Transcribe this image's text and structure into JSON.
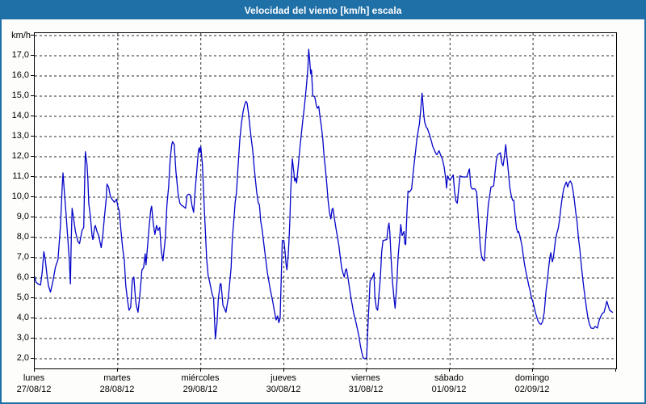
{
  "window": {
    "title": "Velocidad del viento [km/h] escala"
  },
  "colors": {
    "titlebar_bg": "#2070a8",
    "frame": "#2070a8",
    "line": "#0404c8",
    "grid": "#282828",
    "plot_bg": "#ffffff",
    "text": "#000000"
  },
  "y_axis": {
    "unit_label": "km/h",
    "tick_labels": [
      "17,0",
      "16,0",
      "15,0",
      "14,0",
      "13,0",
      "12,0",
      "11,0",
      "10,0",
      "9,0",
      "8,0",
      "7,0",
      "6,0",
      "5,0",
      "4,0",
      "3,0",
      "2,0"
    ],
    "tick_values": [
      17,
      16,
      15,
      14,
      13,
      12,
      11,
      10,
      9,
      8,
      7,
      6,
      5,
      4,
      3,
      2
    ]
  },
  "x_axis": {
    "days": [
      {
        "name": "lunes",
        "date": "27/08/12"
      },
      {
        "name": "martes",
        "date": "28/08/12"
      },
      {
        "name": "miércoles",
        "date": "29/08/12"
      },
      {
        "name": "jueves",
        "date": "30/08/12"
      },
      {
        "name": "viernes",
        "date": "31/08/12"
      },
      {
        "name": "sábado",
        "date": "01/09/12"
      },
      {
        "name": "domingo",
        "date": "02/09/12"
      }
    ]
  },
  "chart_data": {
    "type": "line",
    "title": "Velocidad del viento [km/h] escala",
    "series_name": "Velocidad del viento",
    "unit": "km/h",
    "x_unit": "days since 27/08/12 00:00",
    "xlim": [
      0,
      7
    ],
    "ylim": [
      1.5,
      18.2
    ],
    "grid": "dashed",
    "legend": "none",
    "points": [
      [
        0.0,
        6.05
      ],
      [
        0.015,
        5.8
      ],
      [
        0.04,
        5.7
      ],
      [
        0.07,
        5.65
      ],
      [
        0.09,
        6.3
      ],
      [
        0.11,
        7.3
      ],
      [
        0.127,
        6.9
      ],
      [
        0.146,
        6.2
      ],
      [
        0.166,
        5.6
      ],
      [
        0.19,
        5.3
      ],
      [
        0.22,
        5.85
      ],
      [
        0.25,
        6.55
      ],
      [
        0.28,
        6.9
      ],
      [
        0.31,
        8.6
      ],
      [
        0.33,
        10.4
      ],
      [
        0.34,
        11.2
      ],
      [
        0.36,
        10.1
      ],
      [
        0.38,
        9.0
      ],
      [
        0.396,
        8.1
      ],
      [
        0.416,
        6.9
      ],
      [
        0.43,
        5.7
      ],
      [
        0.44,
        8.0
      ],
      [
        0.45,
        9.45
      ],
      [
        0.47,
        8.9
      ],
      [
        0.49,
        8.3
      ],
      [
        0.52,
        7.8
      ],
      [
        0.54,
        7.7
      ],
      [
        0.57,
        8.35
      ],
      [
        0.59,
        8.5
      ],
      [
        0.6,
        10.5
      ],
      [
        0.61,
        12.25
      ],
      [
        0.63,
        11.6
      ],
      [
        0.64,
        10.9
      ],
      [
        0.65,
        9.7
      ],
      [
        0.67,
        9.05
      ],
      [
        0.69,
        8.1
      ],
      [
        0.7,
        7.9
      ],
      [
        0.72,
        8.5
      ],
      [
        0.73,
        8.6
      ],
      [
        0.75,
        8.3
      ],
      [
        0.77,
        8.1
      ],
      [
        0.8,
        7.5
      ],
      [
        0.82,
        8.1
      ],
      [
        0.84,
        9.05
      ],
      [
        0.86,
        9.9
      ],
      [
        0.87,
        10.65
      ],
      [
        0.89,
        10.5
      ],
      [
        0.91,
        10.05
      ],
      [
        0.93,
        9.9
      ],
      [
        0.96,
        9.75
      ],
      [
        0.985,
        9.9
      ],
      [
        1.0,
        9.55
      ],
      [
        1.019,
        9.3
      ],
      [
        1.039,
        8.3
      ],
      [
        1.058,
        7.5
      ],
      [
        1.078,
        6.9
      ],
      [
        1.097,
        5.6
      ],
      [
        1.117,
        4.9
      ],
      [
        1.136,
        4.4
      ],
      [
        1.155,
        4.55
      ],
      [
        1.175,
        5.9
      ],
      [
        1.194,
        6.05
      ],
      [
        1.214,
        4.9
      ],
      [
        1.223,
        4.65
      ],
      [
        1.243,
        4.3
      ],
      [
        1.262,
        5.0
      ],
      [
        1.272,
        5.45
      ],
      [
        1.291,
        6.4
      ],
      [
        1.311,
        6.5
      ],
      [
        1.33,
        7.2
      ],
      [
        1.34,
        6.65
      ],
      [
        1.359,
        7.6
      ],
      [
        1.379,
        8.6
      ],
      [
        1.398,
        9.4
      ],
      [
        1.408,
        9.55
      ],
      [
        1.427,
        8.7
      ],
      [
        1.447,
        8.15
      ],
      [
        1.466,
        8.6
      ],
      [
        1.485,
        8.35
      ],
      [
        1.505,
        8.5
      ],
      [
        1.524,
        7.3
      ],
      [
        1.544,
        6.85
      ],
      [
        1.573,
        8.0
      ],
      [
        1.592,
        9.6
      ],
      [
        1.612,
        10.5
      ],
      [
        1.631,
        11.9
      ],
      [
        1.65,
        12.6
      ],
      [
        1.66,
        12.75
      ],
      [
        1.68,
        12.6
      ],
      [
        1.699,
        11.3
      ],
      [
        1.709,
        10.9
      ],
      [
        1.728,
        10.1
      ],
      [
        1.748,
        9.7
      ],
      [
        1.767,
        9.6
      ],
      [
        1.786,
        9.55
      ],
      [
        1.816,
        9.45
      ],
      [
        1.835,
        10.1
      ],
      [
        1.854,
        10.15
      ],
      [
        1.874,
        10.1
      ],
      [
        1.893,
        9.6
      ],
      [
        1.913,
        9.25
      ],
      [
        1.932,
        10.35
      ],
      [
        1.951,
        11.3
      ],
      [
        1.971,
        12.3
      ],
      [
        1.981,
        12.45
      ],
      [
        1.99,
        12.2
      ],
      [
        2.0,
        12.5
      ],
      [
        2.019,
        11.6
      ],
      [
        2.039,
        9.7
      ],
      [
        2.058,
        8.0
      ],
      [
        2.071,
        6.9
      ],
      [
        2.088,
        6.1
      ],
      [
        2.104,
        5.85
      ],
      [
        2.136,
        5.2
      ],
      [
        2.153,
        4.99
      ],
      [
        2.175,
        3.0
      ],
      [
        2.195,
        3.8
      ],
      [
        2.211,
        4.98
      ],
      [
        2.234,
        5.72
      ],
      [
        2.244,
        5.7
      ],
      [
        2.266,
        4.65
      ],
      [
        2.283,
        4.5
      ],
      [
        2.302,
        4.3
      ],
      [
        2.331,
        5.05
      ],
      [
        2.364,
        6.5
      ],
      [
        2.38,
        8.0
      ],
      [
        2.4,
        9.0
      ],
      [
        2.412,
        9.7
      ],
      [
        2.429,
        10.2
      ],
      [
        2.448,
        11.5
      ],
      [
        2.468,
        12.8
      ],
      [
        2.487,
        13.6
      ],
      [
        2.507,
        14.2
      ],
      [
        2.526,
        14.55
      ],
      [
        2.543,
        14.75
      ],
      [
        2.558,
        14.65
      ],
      [
        2.575,
        14.1
      ],
      [
        2.592,
        13.45
      ],
      [
        2.607,
        12.9
      ],
      [
        2.624,
        12.35
      ],
      [
        2.64,
        11.6
      ],
      [
        2.656,
        10.9
      ],
      [
        2.673,
        10.25
      ],
      [
        2.692,
        9.7
      ],
      [
        2.705,
        9.65
      ],
      [
        2.721,
        8.8
      ],
      [
        2.738,
        8.4
      ],
      [
        2.77,
        7.3
      ],
      [
        2.802,
        6.25
      ],
      [
        2.835,
        5.45
      ],
      [
        2.867,
        4.8
      ],
      [
        2.884,
        4.4
      ],
      [
        2.906,
        3.92
      ],
      [
        2.923,
        4.12
      ],
      [
        2.939,
        3.79
      ],
      [
        2.955,
        4.0
      ],
      [
        2.968,
        6.0
      ],
      [
        2.981,
        7.85
      ],
      [
        3.0,
        7.85
      ],
      [
        3.014,
        7.3
      ],
      [
        3.026,
        6.7
      ],
      [
        3.036,
        6.4
      ],
      [
        3.052,
        7.1
      ],
      [
        3.062,
        7.85
      ],
      [
        3.072,
        8.9
      ],
      [
        3.082,
        10.3
      ],
      [
        3.101,
        11.9
      ],
      [
        3.121,
        11.2
      ],
      [
        3.13,
        10.8
      ],
      [
        3.14,
        10.95
      ],
      [
        3.153,
        10.7
      ],
      [
        3.176,
        11.7
      ],
      [
        3.192,
        12.4
      ],
      [
        3.208,
        13.05
      ],
      [
        3.225,
        13.7
      ],
      [
        3.24,
        14.25
      ],
      [
        3.257,
        14.9
      ],
      [
        3.273,
        15.6
      ],
      [
        3.289,
        16.4
      ],
      [
        3.299,
        17.32
      ],
      [
        3.312,
        16.7
      ],
      [
        3.322,
        16.1
      ],
      [
        3.332,
        16.3
      ],
      [
        3.347,
        15.05
      ],
      [
        3.354,
        15.0
      ],
      [
        3.371,
        14.98
      ],
      [
        3.393,
        14.5
      ],
      [
        3.403,
        14.4
      ],
      [
        3.419,
        14.5
      ],
      [
        3.435,
        13.98
      ],
      [
        3.451,
        13.5
      ],
      [
        3.468,
        12.9
      ],
      [
        3.483,
        12.05
      ],
      [
        3.5,
        11.4
      ],
      [
        3.517,
        10.65
      ],
      [
        3.532,
        9.85
      ],
      [
        3.549,
        9.25
      ],
      [
        3.565,
        8.92
      ],
      [
        3.581,
        9.4
      ],
      [
        3.59,
        9.45
      ],
      [
        3.614,
        8.8
      ],
      [
        3.629,
        8.4
      ],
      [
        3.646,
        8.0
      ],
      [
        3.662,
        7.6
      ],
      [
        3.678,
        7.05
      ],
      [
        3.695,
        6.5
      ],
      [
        3.711,
        6.25
      ],
      [
        3.727,
        6.05
      ],
      [
        3.743,
        6.4
      ],
      [
        3.753,
        6.45
      ],
      [
        3.77,
        6.05
      ],
      [
        3.792,
        5.45
      ],
      [
        3.808,
        4.99
      ],
      [
        3.824,
        4.65
      ],
      [
        3.84,
        4.25
      ],
      [
        3.857,
        3.99
      ],
      [
        3.873,
        3.7
      ],
      [
        3.889,
        3.4
      ],
      [
        3.906,
        3.05
      ],
      [
        3.921,
        2.65
      ],
      [
        3.938,
        2.3
      ],
      [
        3.954,
        2.05
      ],
      [
        3.97,
        2.0
      ],
      [
        3.996,
        2.05
      ],
      [
        4.006,
        3.0
      ],
      [
        4.016,
        4.0
      ],
      [
        4.038,
        5.85
      ],
      [
        4.064,
        6.0
      ],
      [
        4.084,
        6.25
      ],
      [
        4.096,
        5.05
      ],
      [
        4.113,
        4.5
      ],
      [
        4.129,
        4.4
      ],
      [
        4.161,
        6.0
      ],
      [
        4.178,
        7.3
      ],
      [
        4.193,
        7.85
      ],
      [
        4.239,
        7.9
      ],
      [
        4.252,
        8.4
      ],
      [
        4.265,
        8.72
      ],
      [
        4.275,
        8.3
      ],
      [
        4.291,
        6.92
      ],
      [
        4.307,
        5.85
      ],
      [
        4.324,
        5.05
      ],
      [
        4.339,
        4.5
      ],
      [
        4.359,
        5.7
      ],
      [
        4.375,
        7.05
      ],
      [
        4.392,
        7.85
      ],
      [
        4.407,
        8.65
      ],
      [
        4.424,
        8.1
      ],
      [
        4.446,
        8.3
      ],
      [
        4.456,
        7.7
      ],
      [
        4.466,
        7.65
      ],
      [
        4.482,
        9.3
      ],
      [
        4.495,
        10.3
      ],
      [
        4.511,
        10.25
      ],
      [
        4.537,
        10.4
      ],
      [
        4.553,
        11.05
      ],
      [
        4.569,
        11.7
      ],
      [
        4.586,
        12.3
      ],
      [
        4.602,
        12.9
      ],
      [
        4.618,
        13.3
      ],
      [
        4.631,
        13.6
      ],
      [
        4.647,
        14.3
      ],
      [
        4.664,
        15.15
      ],
      [
        4.676,
        14.5
      ],
      [
        4.686,
        14.0
      ],
      [
        4.696,
        13.7
      ],
      [
        4.715,
        13.45
      ],
      [
        4.728,
        13.4
      ],
      [
        4.761,
        13.0
      ],
      [
        4.793,
        12.5
      ],
      [
        4.825,
        12.2
      ],
      [
        4.842,
        12.1
      ],
      [
        4.868,
        12.3
      ],
      [
        4.89,
        12.05
      ],
      [
        4.907,
        11.9
      ],
      [
        4.929,
        11.5
      ],
      [
        4.949,
        10.9
      ],
      [
        4.958,
        10.45
      ],
      [
        4.971,
        11.05
      ],
      [
        4.988,
        10.9
      ],
      [
        5.0,
        10.85
      ],
      [
        5.017,
        10.95
      ],
      [
        5.039,
        11.1
      ],
      [
        5.055,
        10.3
      ],
      [
        5.072,
        9.79
      ],
      [
        5.088,
        9.7
      ],
      [
        5.104,
        10.4
      ],
      [
        5.121,
        11.05
      ],
      [
        5.153,
        11.0
      ],
      [
        5.201,
        11.0
      ],
      [
        5.233,
        11.4
      ],
      [
        5.25,
        10.55
      ],
      [
        5.267,
        10.4
      ],
      [
        5.299,
        10.42
      ],
      [
        5.321,
        10.25
      ],
      [
        5.34,
        9.05
      ],
      [
        5.354,
        8.25
      ],
      [
        5.364,
        7.6
      ],
      [
        5.374,
        7.25
      ],
      [
        5.379,
        7.1
      ],
      [
        5.396,
        6.9
      ],
      [
        5.413,
        6.85
      ],
      [
        5.428,
        7.85
      ],
      [
        5.445,
        8.8
      ],
      [
        5.461,
        9.6
      ],
      [
        5.477,
        10.05
      ],
      [
        5.493,
        10.5
      ],
      [
        5.525,
        10.55
      ],
      [
        5.542,
        11.2
      ],
      [
        5.558,
        11.85
      ],
      [
        5.574,
        12.1
      ],
      [
        5.607,
        12.2
      ],
      [
        5.623,
        11.7
      ],
      [
        5.639,
        11.55
      ],
      [
        5.656,
        12.05
      ],
      [
        5.671,
        12.6
      ],
      [
        5.688,
        11.85
      ],
      [
        5.704,
        11.2
      ],
      [
        5.72,
        10.5
      ],
      [
        5.736,
        10.1
      ],
      [
        5.753,
        9.85
      ],
      [
        5.768,
        9.85
      ],
      [
        5.785,
        9.05
      ],
      [
        5.801,
        8.45
      ],
      [
        5.817,
        8.25
      ],
      [
        5.827,
        8.3
      ],
      [
        5.84,
        8.1
      ],
      [
        5.866,
        7.6
      ],
      [
        5.882,
        7.1
      ],
      [
        5.898,
        6.65
      ],
      [
        5.914,
        6.3
      ],
      [
        5.931,
        5.99
      ],
      [
        5.947,
        5.65
      ],
      [
        5.963,
        5.4
      ],
      [
        5.979,
        5.05
      ],
      [
        6.0,
        4.8
      ],
      [
        6.028,
        4.3
      ],
      [
        6.057,
        3.9
      ],
      [
        6.077,
        3.75
      ],
      [
        6.096,
        3.7
      ],
      [
        6.115,
        3.85
      ],
      [
        6.135,
        4.3
      ],
      [
        6.157,
        5.4
      ],
      [
        6.174,
        5.92
      ],
      [
        6.19,
        6.6
      ],
      [
        6.206,
        7.1
      ],
      [
        6.213,
        7.25
      ],
      [
        6.232,
        6.8
      ],
      [
        6.245,
        7.0
      ],
      [
        6.271,
        7.92
      ],
      [
        6.288,
        8.25
      ],
      [
        6.303,
        8.45
      ],
      [
        6.32,
        8.92
      ],
      [
        6.336,
        9.52
      ],
      [
        6.352,
        9.99
      ],
      [
        6.368,
        10.4
      ],
      [
        6.385,
        10.6
      ],
      [
        6.4,
        10.75
      ],
      [
        6.417,
        10.5
      ],
      [
        6.433,
        10.72
      ],
      [
        6.449,
        10.8
      ],
      [
        6.466,
        10.65
      ],
      [
        6.482,
        10.3
      ],
      [
        6.497,
        9.85
      ],
      [
        6.514,
        9.25
      ],
      [
        6.531,
        8.72
      ],
      [
        6.546,
        7.99
      ],
      [
        6.563,
        7.4
      ],
      [
        6.579,
        6.7
      ],
      [
        6.595,
        6.1
      ],
      [
        6.611,
        5.5
      ],
      [
        6.628,
        4.99
      ],
      [
        6.643,
        4.5
      ],
      [
        6.66,
        4.05
      ],
      [
        6.679,
        3.7
      ],
      [
        6.699,
        3.52
      ],
      [
        6.728,
        3.5
      ],
      [
        6.747,
        3.6
      ],
      [
        6.774,
        3.52
      ],
      [
        6.796,
        3.9
      ],
      [
        6.815,
        4.1
      ],
      [
        6.835,
        4.25
      ],
      [
        6.854,
        4.3
      ],
      [
        6.874,
        4.6
      ],
      [
        6.888,
        4.85
      ],
      [
        6.903,
        4.65
      ],
      [
        6.922,
        4.4
      ],
      [
        6.941,
        4.35
      ],
      [
        6.956,
        4.3
      ]
    ]
  }
}
